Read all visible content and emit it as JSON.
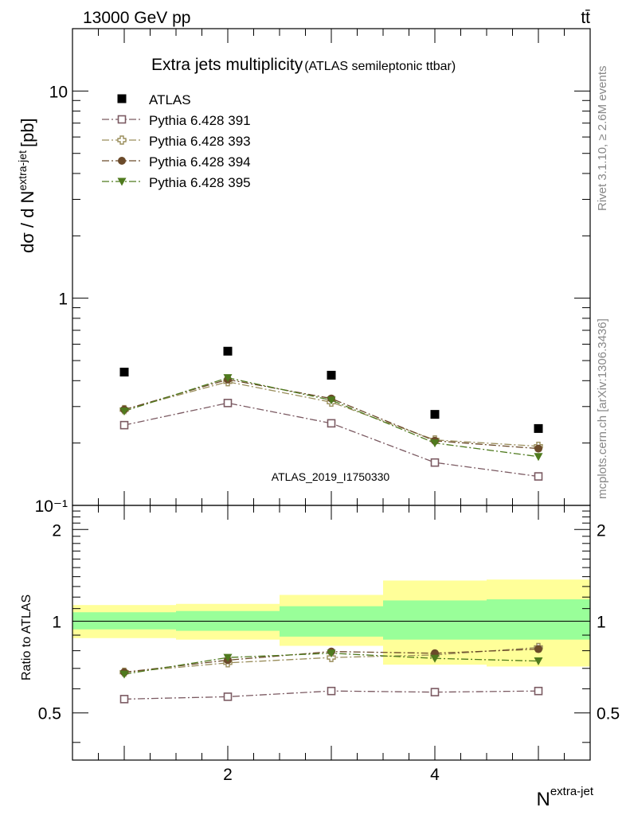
{
  "header": {
    "energy_label": "13000 GeV pp",
    "process_label": "tt̄"
  },
  "side_labels": {
    "rivet": "Rivet 3.1.10, ≥ 2.6M events",
    "mcplots": "mcplots.cern.ch [arXiv:1306.3436]"
  },
  "chart_data": {
    "type": "scatter",
    "title": "Extra jets multiplicity",
    "subtitle": "(ATLAS semileptonic ttbar)",
    "analysis_tag": "ATLAS_2019_I1750330",
    "xlabel": "N",
    "xlabel_sup": "extra-jet",
    "ylabel": "dσ / d N",
    "ylabel_sup": "extra-jet",
    "ylabel_unit": "[pb]",
    "ratio_ylabel": "Ratio to ATLAS",
    "x": [
      1,
      2,
      3,
      4,
      5
    ],
    "xlim": [
      0.5,
      5.5
    ],
    "x_ticks": [
      2,
      4
    ],
    "x_tick_labels": [
      "2",
      "4"
    ],
    "yscale": "log",
    "ylim": [
      0.1,
      20
    ],
    "y_tick_labels": [
      "10⁻¹",
      "1",
      "10"
    ],
    "ratio_ylim": [
      0.35,
      2.4
    ],
    "ratio_ticks": [
      0.5,
      1,
      2
    ],
    "ratio_tick_labels": [
      "0.5",
      "1",
      "2"
    ],
    "legend_position": "top-left",
    "data": {
      "name": "ATLAS",
      "color": "#000000",
      "values": [
        0.44,
        0.555,
        0.425,
        0.275,
        0.235
      ],
      "band_inner": [
        [
          0.94,
          1.07
        ],
        [
          0.93,
          1.08
        ],
        [
          0.89,
          1.12
        ],
        [
          0.87,
          1.17
        ],
        [
          0.87,
          1.18
        ]
      ],
      "band_outer": [
        [
          0.88,
          1.13
        ],
        [
          0.87,
          1.14
        ],
        [
          0.83,
          1.22
        ],
        [
          0.72,
          1.36
        ],
        [
          0.71,
          1.37
        ]
      ]
    },
    "band_colors": {
      "inner": "#99ff99",
      "outer": "#ffff99"
    },
    "series": [
      {
        "name": "Pythia 6.428 391",
        "color": "#7b5a62",
        "marker": "open-square",
        "values": [
          0.244,
          0.312,
          0.249,
          0.161,
          0.138
        ],
        "ratio": [
          0.555,
          0.565,
          0.59,
          0.585,
          0.59
        ]
      },
      {
        "name": "Pythia 6.428 393",
        "color": "#9a8e5c",
        "marker": "open-cross",
        "values": [
          0.29,
          0.395,
          0.315,
          0.207,
          0.193
        ],
        "ratio": [
          0.68,
          0.73,
          0.76,
          0.775,
          0.82
        ]
      },
      {
        "name": "Pythia 6.428 394",
        "color": "#6b4a2a",
        "marker": "filled-circle",
        "values": [
          0.29,
          0.405,
          0.328,
          0.205,
          0.188
        ],
        "ratio": [
          0.68,
          0.745,
          0.795,
          0.785,
          0.81
        ]
      },
      {
        "name": "Pythia 6.428 395",
        "color": "#4f7a1e",
        "marker": "filled-triangle-down",
        "values": [
          0.285,
          0.413,
          0.322,
          0.2,
          0.172
        ],
        "ratio": [
          0.67,
          0.76,
          0.785,
          0.755,
          0.74
        ]
      }
    ]
  }
}
